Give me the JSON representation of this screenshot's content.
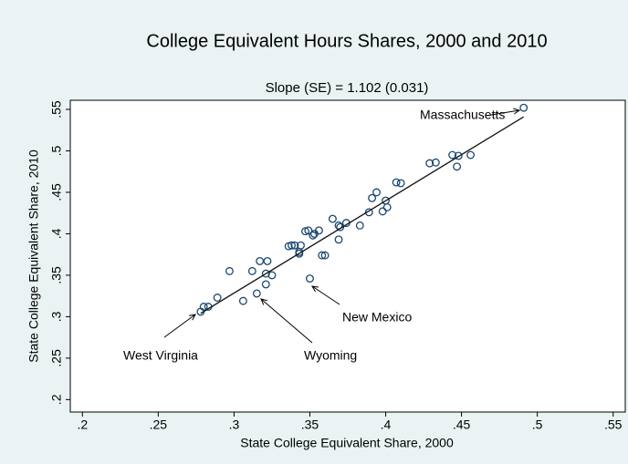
{
  "chart_data": {
    "type": "scatter",
    "title": "College Equivalent Hours Shares, 2000 and 2010",
    "subtitle": "Slope (SE) = 1.102 (0.031)",
    "x_label": "State College Equivalent Share, 2000",
    "y_label": "State College Equivalent Share, 2010",
    "series": [
      {
        "color": "#1a476f",
        "x": [
          0.278,
          0.28,
          0.283,
          0.289,
          0.297,
          0.306,
          0.312,
          0.315,
          0.317,
          0.321,
          0.321,
          0.322,
          0.325,
          0.336,
          0.338,
          0.34,
          0.343,
          0.344,
          0.343,
          0.347,
          0.349,
          0.35,
          0.352,
          0.353,
          0.356,
          0.358,
          0.36,
          0.365,
          0.369,
          0.369,
          0.37,
          0.374,
          0.383,
          0.389,
          0.391,
          0.394,
          0.398,
          0.4,
          0.401,
          0.407,
          0.41,
          0.429,
          0.433,
          0.444,
          0.447,
          0.448,
          0.456,
          0.491
        ],
        "values": [
          0.306,
          0.312,
          0.312,
          0.323,
          0.355,
          0.319,
          0.355,
          0.328,
          0.367,
          0.339,
          0.352,
          0.367,
          0.35,
          0.385,
          0.386,
          0.386,
          0.378,
          0.386,
          0.376,
          0.403,
          0.404,
          0.346,
          0.398,
          0.4,
          0.404,
          0.374,
          0.374,
          0.418,
          0.393,
          0.41,
          0.408,
          0.413,
          0.41,
          0.426,
          0.443,
          0.45,
          0.427,
          0.44,
          0.432,
          0.462,
          0.461,
          0.485,
          0.486,
          0.495,
          0.481,
          0.494,
          0.495,
          0.552
        ]
      }
    ],
    "fit_line": {
      "color": "#1a1a1a",
      "x": [
        0.278,
        0.491
      ],
      "values": [
        0.304,
        0.541
      ]
    },
    "annotations": [
      "Massachusetts",
      "New Mexico",
      "West Virginia",
      "Wyoming"
    ],
    "xlim": [
      0.192,
      0.558
    ],
    "ylim": [
      0.185,
      0.561
    ],
    "xticks": [
      {
        "value": 0.2,
        "label": ".2"
      },
      {
        "value": 0.25,
        "label": ".25"
      },
      {
        "value": 0.3,
        "label": ".3"
      },
      {
        "value": 0.35,
        "label": ".35"
      },
      {
        "value": 0.4,
        "label": ".4"
      },
      {
        "value": 0.45,
        "label": ".45"
      },
      {
        "value": 0.5,
        "label": ".5"
      },
      {
        "value": 0.55,
        "label": ".55"
      }
    ],
    "yticks": [
      {
        "value": 0.2,
        "label": ".2"
      },
      {
        "value": 0.25,
        "label": ".25"
      },
      {
        "value": 0.3,
        "label": ".3"
      },
      {
        "value": 0.35,
        "label": ".35"
      },
      {
        "value": 0.4,
        "label": ".4"
      },
      {
        "value": 0.45,
        "label": ".45"
      },
      {
        "value": 0.5,
        "label": ".5"
      },
      {
        "value": 0.55,
        "label": ".55"
      }
    ],
    "grid": false
  }
}
